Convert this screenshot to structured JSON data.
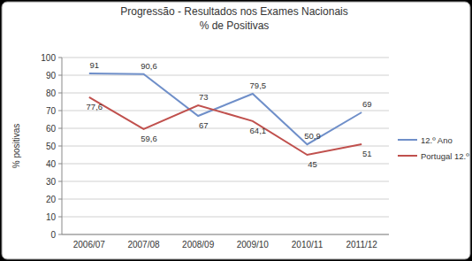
{
  "chart_data": {
    "type": "line",
    "title": "Progressão - Resultados nos Exames Nacionais",
    "subtitle": "% de Positivas",
    "y_label": "% positivas",
    "categories": [
      "2006/07",
      "2007/08",
      "2008/09",
      "2009/10",
      "2010/11",
      "2011/12"
    ],
    "series": [
      {
        "name": "12.º Ano",
        "color": "#6f8fc9",
        "marker": "none",
        "line_style": "solid",
        "values": [
          91,
          90.6,
          67,
          79.5,
          50.9,
          69
        ],
        "value_labels": [
          "91",
          "90,6",
          "67",
          "79,5",
          "50,9",
          "69"
        ]
      },
      {
        "name": "Portugal 12.º",
        "color": "#c0504d",
        "marker": "none",
        "line_style": "solid",
        "values": [
          77.6,
          59.6,
          73,
          64.1,
          45,
          51
        ],
        "value_labels": [
          "77,6",
          "59,6",
          "73",
          "64,1",
          "45",
          "51"
        ]
      }
    ],
    "ylim": [
      0,
      100
    ],
    "yticks": [
      0,
      10,
      20,
      30,
      40,
      50,
      60,
      70,
      80,
      90,
      100
    ],
    "grid": true,
    "legend": "right",
    "data_labels": true
  }
}
